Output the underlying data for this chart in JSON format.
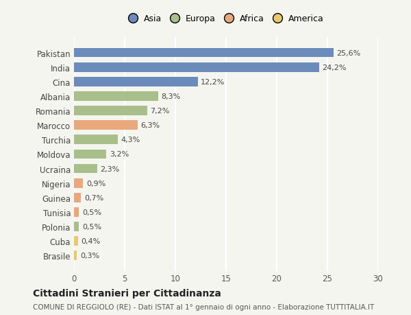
{
  "countries": [
    "Pakistan",
    "India",
    "Cina",
    "Albania",
    "Romania",
    "Marocco",
    "Turchia",
    "Moldova",
    "Ucraina",
    "Nigeria",
    "Guinea",
    "Tunisia",
    "Polonia",
    "Cuba",
    "Brasile"
  ],
  "values": [
    25.6,
    24.2,
    12.2,
    8.3,
    7.2,
    6.3,
    4.3,
    3.2,
    2.3,
    0.9,
    0.7,
    0.5,
    0.5,
    0.4,
    0.3
  ],
  "labels": [
    "25,6%",
    "24,2%",
    "12,2%",
    "8,3%",
    "7,2%",
    "6,3%",
    "4,3%",
    "3,2%",
    "2,3%",
    "0,9%",
    "0,7%",
    "0,5%",
    "0,5%",
    "0,4%",
    "0,3%"
  ],
  "colors": [
    "#6b8cba",
    "#6b8cba",
    "#6b8cba",
    "#a8bf8c",
    "#a8bf8c",
    "#e8a87c",
    "#a8bf8c",
    "#a8bf8c",
    "#a8bf8c",
    "#e8a87c",
    "#e8a87c",
    "#e8a87c",
    "#a8bf8c",
    "#e8c870",
    "#e8c870"
  ],
  "continent_names": [
    "Asia",
    "Europa",
    "Africa",
    "America"
  ],
  "continent_colors": [
    "#6b8cba",
    "#a8bf8c",
    "#e8a87c",
    "#e8c870"
  ],
  "title": "Cittadini Stranieri per Cittadinanza",
  "subtitle": "COMUNE DI REGGIOLO (RE) - Dati ISTAT al 1° gennaio di ogni anno - Elaborazione TUTTITALIA.IT",
  "xlim": [
    0,
    30
  ],
  "xticks": [
    0,
    5,
    10,
    15,
    20,
    25,
    30
  ],
  "background_color": "#f5f5f0",
  "grid_color": "#ffffff",
  "bar_height": 0.65
}
